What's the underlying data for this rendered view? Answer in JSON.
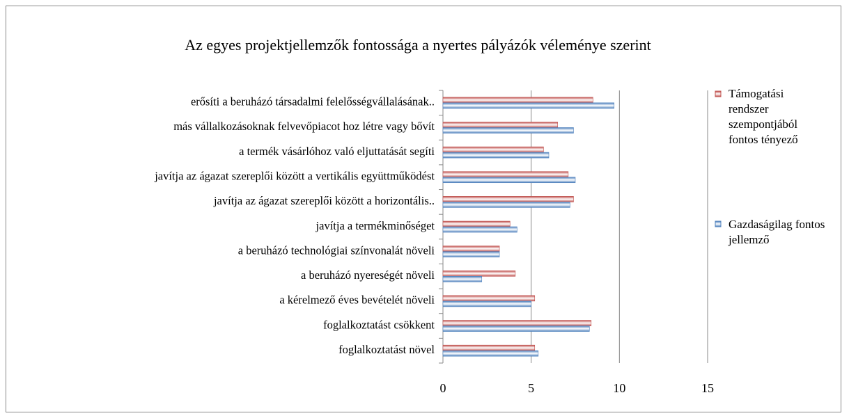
{
  "chart_data": {
    "type": "hbar",
    "title": "Az egyes projektjellemzők fontossága a nyertes pályázók véleménye szerint",
    "categories": [
      "erősíti a beruházó társadalmi felelősségvállalásának..",
      "más vállalkozásoknak felvevőpiacot hoz létre vagy bővít",
      "a termék vásárlóhoz való eljuttatását segíti",
      "javítja az ágazat szereplői között a vertikális együttműködést",
      "javítja az ágazat szereplői között a horizontális..",
      "javítja a termékminőséget",
      "a beruházó technológiai színvonalát növeli",
      "a beruházó nyereségét növeli",
      "a kérelmező éves bevételét növeli",
      "foglalkoztatást csökkent",
      "foglalkoztatást növel"
    ],
    "series": [
      {
        "name": "Támogatási rendszer szempontjából fontos tényező",
        "color": "#c0504d",
        "values": [
          8.5,
          6.5,
          5.7,
          7.1,
          7.4,
          3.8,
          3.2,
          4.1,
          5.2,
          8.4,
          5.2
        ]
      },
      {
        "name": "Gazdaságilag fontos jellemző",
        "color": "#4f81bd",
        "values": [
          9.7,
          7.4,
          6.0,
          7.5,
          7.2,
          4.2,
          3.2,
          2.2,
          5.0,
          8.3,
          5.4
        ]
      }
    ],
    "xlim": [
      0,
      15
    ],
    "xticks": [
      0,
      5,
      10,
      15
    ],
    "grid": true,
    "legend": "right"
  }
}
